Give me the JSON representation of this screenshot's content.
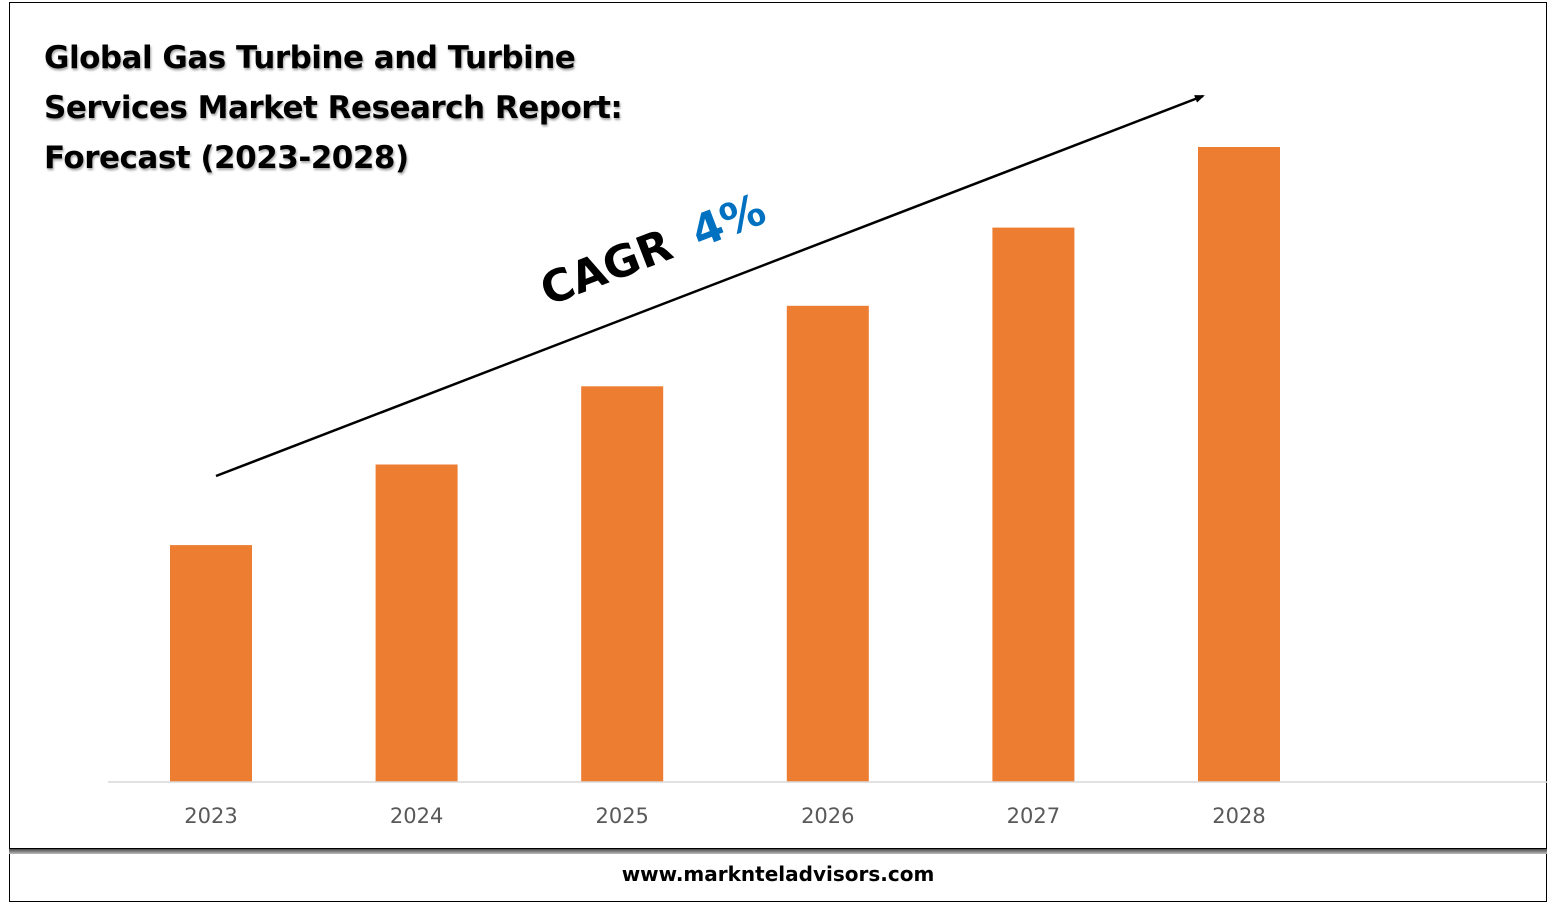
{
  "header": {
    "title_lines": [
      "Global Gas Turbine and Turbine",
      "Services Market Research Report:",
      "Forecast (2023-2028)"
    ]
  },
  "annotation": {
    "cagr_label": "CAGR",
    "cagr_value": "4%",
    "cagr_color": "#0070c0"
  },
  "footer": {
    "website": "www.marknteladvisors.com"
  },
  "colors": {
    "bar": "#ed7d31",
    "axis": "#d9d9d9",
    "tick_text": "#595959"
  },
  "chart_data": {
    "type": "bar",
    "title": "Global Gas Turbine and Turbine Services Market Research Report: Forecast (2023-2028)",
    "categories": [
      "2023",
      "2024",
      "2025",
      "2026",
      "2027",
      "2028"
    ],
    "values": [
      100,
      134,
      167,
      201,
      234,
      268
    ],
    "ylim": [
      0,
      300
    ],
    "xlabel": "",
    "ylabel": "",
    "grid": false,
    "legend": "none",
    "note": "Relative bar heights; no value axis shown. CAGR 4%."
  }
}
